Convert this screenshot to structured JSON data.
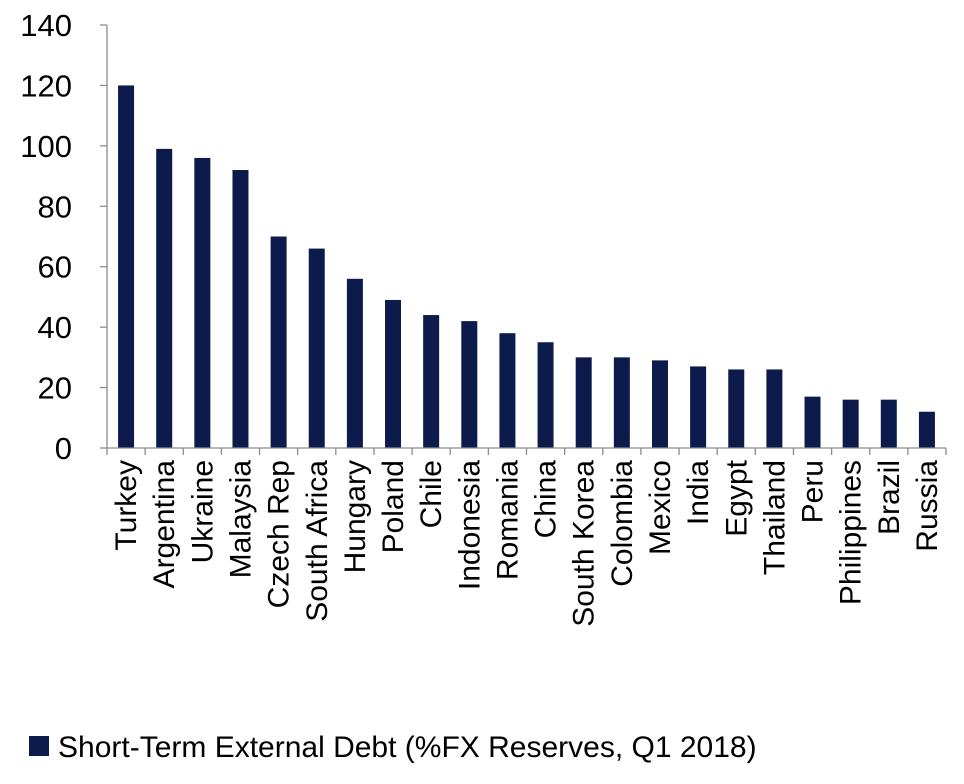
{
  "chart_data": {
    "type": "bar",
    "categories": [
      "Turkey",
      "Argentina",
      "Ukraine",
      "Malaysia",
      "Czech Rep",
      "South Africa",
      "Hungary",
      "Poland",
      "Chile",
      "Indonesia",
      "Romania",
      "China",
      "South Korea",
      "Colombia",
      "Mexico",
      "India",
      "Egypt",
      "Thailand",
      "Peru",
      "Philippines",
      "Brazil",
      "Russia"
    ],
    "series": [
      {
        "name": "Short-Term External Debt (%FX Reserves, Q1 2018)",
        "values": [
          120,
          99,
          96,
          92,
          70,
          66,
          56,
          49,
          44,
          42,
          38,
          35,
          30,
          30,
          29,
          27,
          26,
          26,
          17,
          16,
          16,
          12
        ],
        "color": "#0d1b4c"
      }
    ],
    "title": "",
    "xlabel": "",
    "ylabel": "",
    "ylim": [
      0,
      140
    ],
    "yticks": [
      "0",
      "20",
      "40",
      "60",
      "80",
      "100",
      "120",
      "140"
    ],
    "grid": false,
    "legend_position": "bottom-left"
  }
}
